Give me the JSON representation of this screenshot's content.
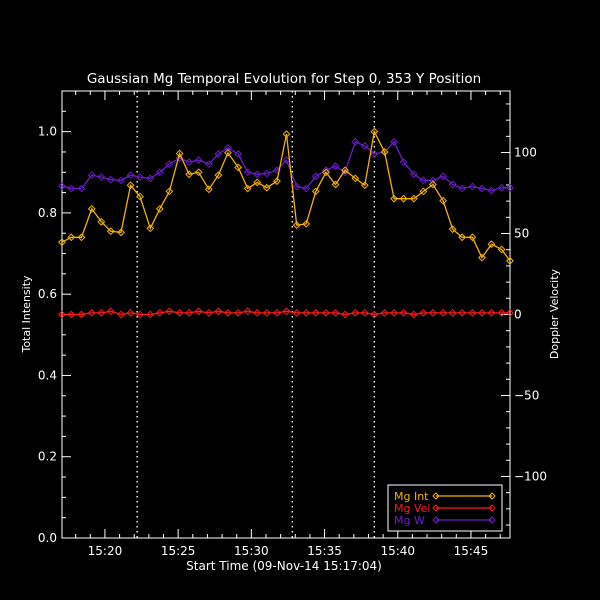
{
  "chart_data": {
    "type": "line",
    "title": "Gaussian Mg Temporal Evolution for Step 0, 353 Y Position",
    "xlabel": "Start Time (09-Nov-14 15:17:04)",
    "ylabel_left": "Total Intensity",
    "ylabel_right": "Doppler Velocity",
    "xlim_min": [
      17.067,
      47.667
    ],
    "ylim_left": [
      0.0,
      1.1
    ],
    "ylim_right": [
      -138,
      138
    ],
    "x_ticks": [
      {
        "value": 20,
        "label": "15:20"
      },
      {
        "value": 25,
        "label": "15:25"
      },
      {
        "value": 30,
        "label": "15:30"
      },
      {
        "value": 35,
        "label": "15:35"
      },
      {
        "value": 40,
        "label": "15:40"
      },
      {
        "value": 45,
        "label": "15:45"
      }
    ],
    "y_ticks_left": [
      {
        "value": 0.0,
        "label": "0.0"
      },
      {
        "value": 0.2,
        "label": "0.2"
      },
      {
        "value": 0.4,
        "label": "0.4"
      },
      {
        "value": 0.6,
        "label": "0.6"
      },
      {
        "value": 0.8,
        "label": "0.8"
      },
      {
        "value": 1.0,
        "label": "1.0"
      }
    ],
    "y_ticks_right": [
      {
        "value": -100,
        "label": "−100"
      },
      {
        "value": -50,
        "label": "−50"
      },
      {
        "value": 0,
        "label": "0"
      },
      {
        "value": 50,
        "label": "50"
      },
      {
        "value": 100,
        "label": "100"
      }
    ],
    "vlines_min": [
      22.2,
      32.8,
      38.4
    ],
    "x_min": [
      17.067,
      17.7,
      18.4,
      19.1,
      19.75,
      20.4,
      21.1,
      21.75,
      22.4,
      23.1,
      23.75,
      24.4,
      25.1,
      25.75,
      26.4,
      27.1,
      27.75,
      28.4,
      29.1,
      29.75,
      30.4,
      31.05,
      31.75,
      32.4,
      33.1,
      33.75,
      34.4,
      35.1,
      35.75,
      36.4,
      37.1,
      37.75,
      38.4,
      39.1,
      39.75,
      40.4,
      41.1,
      41.75,
      42.4,
      43.1,
      43.75,
      44.4,
      45.1,
      45.75,
      46.4,
      47.1,
      47.667
    ],
    "series": [
      {
        "name": "Mg Int",
        "axis": "left",
        "color": "#f5b300",
        "values": [
          0.728,
          0.74,
          0.74,
          0.81,
          0.778,
          0.755,
          0.752,
          0.868,
          0.84,
          0.762,
          0.81,
          0.853,
          0.946,
          0.895,
          0.9,
          0.858,
          0.893,
          0.948,
          0.912,
          0.86,
          0.875,
          0.862,
          0.878,
          0.994,
          0.77,
          0.773,
          0.853,
          0.9,
          0.87,
          0.905,
          0.885,
          0.868,
          1.0,
          0.95,
          0.835,
          0.835,
          0.835,
          0.853,
          0.87,
          0.83,
          0.76,
          0.74,
          0.74,
          0.69,
          0.723,
          0.71,
          0.682
        ]
      },
      {
        "name": "Mg Vel",
        "axis": "right",
        "color": "#ff1a1a",
        "values": [
          0,
          0,
          0,
          1,
          1,
          2,
          0,
          1,
          0,
          0,
          1,
          2,
          1,
          1,
          2,
          1,
          2,
          1,
          1,
          2,
          1,
          1,
          1,
          2,
          1,
          1,
          1,
          1,
          1,
          0,
          1,
          1,
          0,
          1,
          1,
          1,
          0,
          1,
          1,
          1,
          1,
          1,
          1,
          1,
          1,
          1,
          1
        ]
      },
      {
        "name": "Mg W",
        "axis": "left",
        "color": "#6a1ec8",
        "values": [
          0.866,
          0.86,
          0.86,
          0.893,
          0.888,
          0.882,
          0.88,
          0.893,
          0.888,
          0.885,
          0.9,
          0.92,
          0.935,
          0.925,
          0.93,
          0.92,
          0.945,
          0.96,
          0.945,
          0.9,
          0.895,
          0.897,
          0.905,
          0.93,
          0.865,
          0.86,
          0.89,
          0.905,
          0.915,
          0.9,
          0.975,
          0.965,
          0.945,
          0.95,
          0.975,
          0.925,
          0.895,
          0.88,
          0.88,
          0.89,
          0.87,
          0.86,
          0.865,
          0.86,
          0.855,
          0.862,
          0.862
        ]
      }
    ],
    "legend": {
      "placement": "bottom-right",
      "entries": [
        "Mg Int",
        "Mg Vel",
        "Mg W"
      ]
    }
  }
}
